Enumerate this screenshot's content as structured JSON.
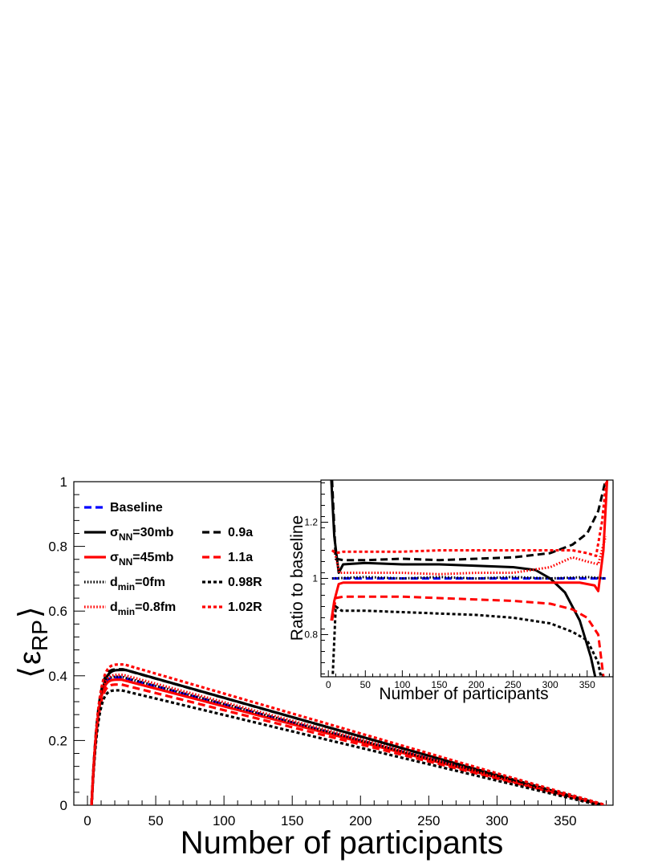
{
  "chart_data": [
    {
      "type": "line",
      "title": "",
      "xlabel": "Number of participants",
      "ylabel_parts": {
        "bracket_left": "⟨",
        "symbol": "ε",
        "subscript": "RP",
        "bracket_right": "⟩"
      },
      "xlim": [
        -10,
        385
      ],
      "ylim": [
        0,
        1
      ],
      "x_ticks": [
        0,
        50,
        100,
        150,
        200,
        250,
        300,
        350
      ],
      "y_ticks": [
        0,
        0.2,
        0.4,
        0.6,
        0.8,
        1
      ],
      "y_tick_labels": [
        "0",
        "0.2",
        "0.4",
        "0.6",
        "0.8",
        "1"
      ],
      "grid": false,
      "legend": {
        "position": "upper-left",
        "entries": [
          {
            "series": "Baseline",
            "text": "Baseline",
            "sub": "",
            "suffix": ""
          },
          {
            "series": "sigma30",
            "text": "σ",
            "sub": "NN",
            "suffix": "=30mb"
          },
          {
            "series": "sigma45",
            "text": "σ",
            "sub": "NN",
            "suffix": "=45mb"
          },
          {
            "series": "dmin0",
            "text": "d",
            "sub": "min",
            "suffix": "=0fm"
          },
          {
            "series": "dmin08",
            "text": "d",
            "sub": "min",
            "suffix": "=0.8fm"
          },
          {
            "series": "a09",
            "text": "0.9a",
            "sub": "",
            "suffix": ""
          },
          {
            "series": "a11",
            "text": "1.1a",
            "sub": "",
            "suffix": ""
          },
          {
            "series": "R098",
            "text": "0.98R",
            "sub": "",
            "suffix": ""
          },
          {
            "series": "R102",
            "text": "1.02R",
            "sub": "",
            "suffix": ""
          }
        ]
      },
      "series": [
        {
          "key": "Baseline",
          "color": "#0000ff",
          "dash": "dash",
          "peak": 0.395,
          "peak_x": 25,
          "end_x": 378
        },
        {
          "key": "sigma30",
          "color": "#000000",
          "dash": "solid",
          "peak": 0.418,
          "peak_x": 28,
          "end_x": 378
        },
        {
          "key": "sigma45",
          "color": "#ff0000",
          "dash": "solid",
          "peak": 0.388,
          "peak_x": 25,
          "end_x": 378
        },
        {
          "key": "dmin0",
          "color": "#000000",
          "dash": "dot",
          "peak": 0.397,
          "peak_x": 25,
          "end_x": 378
        },
        {
          "key": "dmin08",
          "color": "#ff0000",
          "dash": "dot",
          "peak": 0.403,
          "peak_x": 26,
          "end_x": 378
        },
        {
          "key": "a09",
          "color": "#000000",
          "dash": "dash",
          "peak": 0.42,
          "peak_x": 26,
          "end_x": 378
        },
        {
          "key": "a11",
          "color": "#ff0000",
          "dash": "dash",
          "peak": 0.373,
          "peak_x": 25,
          "end_x": 378
        },
        {
          "key": "R098",
          "color": "#000000",
          "dash": "dotdash",
          "peak": 0.355,
          "peak_x": 25,
          "end_x": 375
        },
        {
          "key": "R102",
          "color": "#ff0000",
          "dash": "dotdash",
          "peak": 0.435,
          "peak_x": 27,
          "end_x": 380
        }
      ]
    },
    {
      "type": "line",
      "title": "",
      "xlabel": "Number of participants",
      "ylabel": "Ratio to baseline",
      "xlim": [
        -10,
        385
      ],
      "ylim": [
        0.65,
        1.35
      ],
      "x_ticks": [
        0,
        50,
        100,
        150,
        200,
        250,
        300,
        350
      ],
      "y_ticks": [
        0.8,
        1,
        1.2
      ],
      "y_tick_labels": [
        "0.8",
        "1",
        "1.2"
      ],
      "grid": false,
      "series": [
        {
          "key": "Baseline",
          "color": "#0000ff",
          "dash": "dash",
          "x": [
            5,
            50,
            100,
            150,
            200,
            250,
            300,
            350,
            375
          ],
          "y": [
            1,
            1,
            1,
            1,
            1,
            1,
            1,
            1,
            1
          ]
        },
        {
          "key": "sigma30",
          "color": "#000000",
          "dash": "solid",
          "x": [
            3,
            8,
            14,
            20,
            50,
            100,
            150,
            200,
            250,
            280,
            300,
            320,
            340,
            355,
            365
          ],
          "y": [
            1.4,
            1.15,
            1.02,
            1.05,
            1.055,
            1.05,
            1.05,
            1.045,
            1.04,
            1.03,
            1.0,
            0.95,
            0.85,
            0.72,
            0.6
          ]
        },
        {
          "key": "sigma45",
          "color": "#ff0000",
          "dash": "solid",
          "x": [
            4,
            8,
            14,
            20,
            50,
            100,
            150,
            200,
            250,
            300,
            340,
            360,
            365,
            372,
            378
          ],
          "y": [
            0.85,
            0.92,
            0.98,
            0.985,
            0.985,
            0.985,
            0.985,
            0.985,
            0.985,
            0.985,
            0.985,
            0.975,
            0.955,
            1.1,
            1.4
          ]
        },
        {
          "key": "dmin0",
          "color": "#000000",
          "dash": "dot",
          "x": [
            5,
            50,
            100,
            150,
            200,
            250,
            300,
            350,
            375
          ],
          "y": [
            1.0,
            1.005,
            1.0,
            1.005,
            1.0,
            1.005,
            1.0,
            1.005,
            1.0
          ]
        },
        {
          "key": "dmin08",
          "color": "#ff0000",
          "dash": "dot",
          "x": [
            8,
            15,
            50,
            100,
            150,
            200,
            250,
            300,
            330,
            350,
            365,
            375
          ],
          "y": [
            1.1,
            1.02,
            1.02,
            1.02,
            1.015,
            1.02,
            1.02,
            1.04,
            1.075,
            1.06,
            1.05,
            1.15
          ]
        },
        {
          "key": "a09",
          "color": "#000000",
          "dash": "dash",
          "x": [
            5,
            10,
            20,
            50,
            100,
            150,
            200,
            250,
            300,
            330,
            350,
            365,
            375
          ],
          "y": [
            1.35,
            1.07,
            1.065,
            1.065,
            1.07,
            1.065,
            1.07,
            1.075,
            1.09,
            1.12,
            1.16,
            1.24,
            1.35
          ]
        },
        {
          "key": "a11",
          "color": "#ff0000",
          "dash": "dash",
          "x": [
            5,
            10,
            20,
            50,
            100,
            150,
            200,
            250,
            300,
            330,
            350,
            365,
            372
          ],
          "y": [
            0.85,
            0.93,
            0.935,
            0.935,
            0.935,
            0.93,
            0.925,
            0.92,
            0.91,
            0.89,
            0.86,
            0.8,
            0.65
          ]
        },
        {
          "key": "R098",
          "color": "#000000",
          "dash": "dotdash",
          "x": [
            5,
            10,
            18,
            50,
            100,
            150,
            200,
            250,
            300,
            330,
            350,
            365,
            372
          ],
          "y": [
            0.6,
            0.9,
            0.885,
            0.885,
            0.88,
            0.875,
            0.87,
            0.86,
            0.84,
            0.81,
            0.78,
            0.7,
            0.6
          ]
        },
        {
          "key": "R102",
          "color": "#ff0000",
          "dash": "dotdash",
          "x": [
            5,
            10,
            20,
            50,
            100,
            150,
            200,
            250,
            300,
            330,
            350,
            362,
            370,
            378
          ],
          "y": [
            1.1,
            1.09,
            1.095,
            1.095,
            1.095,
            1.1,
            1.1,
            1.1,
            1.1,
            1.1,
            1.09,
            1.08,
            1.2,
            1.4
          ]
        }
      ]
    }
  ]
}
